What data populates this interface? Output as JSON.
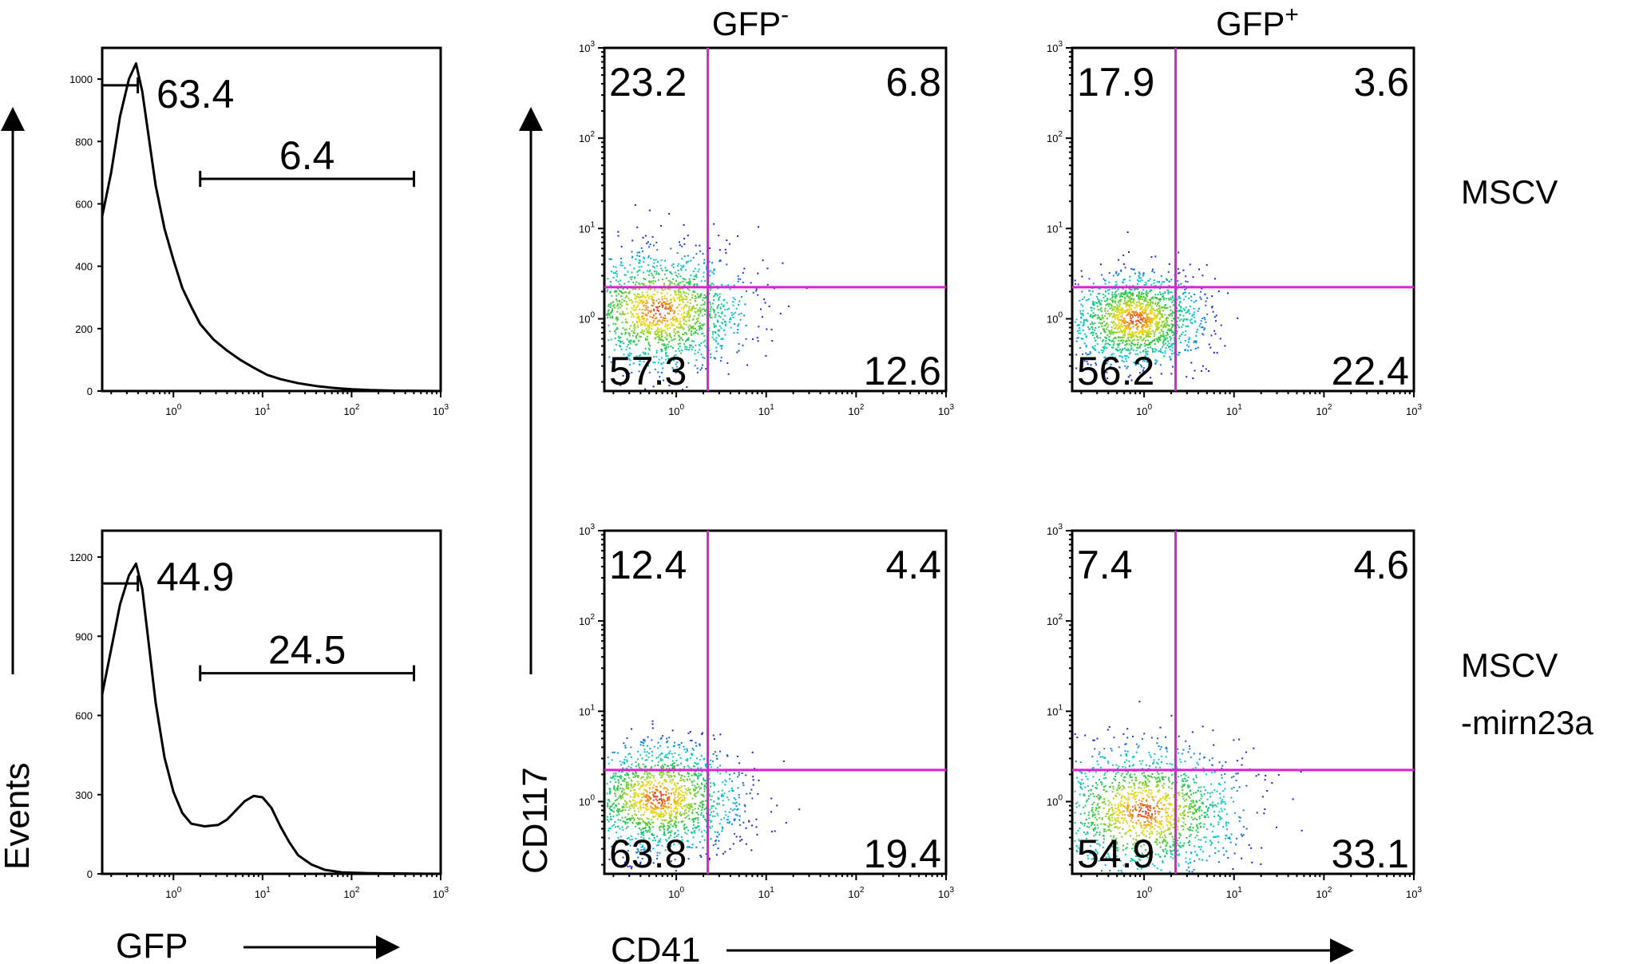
{
  "chart_data": [
    {
      "id": "hist_mscv",
      "type": "histogram",
      "row": "MSCV",
      "xlabel": "",
      "ylabel": "",
      "xlim_log10": [
        -0.8,
        3
      ],
      "ylim": [
        0,
        1100
      ],
      "yticks": [
        0,
        200,
        400,
        600,
        800,
        1000
      ],
      "xtick_labels": [
        {
          "base": "10",
          "exp": "0"
        },
        {
          "base": "10",
          "exp": "1"
        },
        {
          "base": "10",
          "exp": "2"
        },
        {
          "base": "10",
          "exp": "3"
        }
      ],
      "curve": [
        [
          -0.8,
          560
        ],
        [
          -0.7,
          700
        ],
        [
          -0.6,
          880
        ],
        [
          -0.5,
          1000
        ],
        [
          -0.42,
          1050
        ],
        [
          -0.35,
          960
        ],
        [
          -0.28,
          820
        ],
        [
          -0.2,
          660
        ],
        [
          -0.1,
          520
        ],
        [
          0.0,
          420
        ],
        [
          0.1,
          330
        ],
        [
          0.2,
          270
        ],
        [
          0.3,
          215
        ],
        [
          0.45,
          165
        ],
        [
          0.6,
          130
        ],
        [
          0.75,
          100
        ],
        [
          0.9,
          75
        ],
        [
          1.05,
          52
        ],
        [
          1.2,
          38
        ],
        [
          1.4,
          25
        ],
        [
          1.6,
          16
        ],
        [
          1.8,
          10
        ],
        [
          2.0,
          6
        ],
        [
          2.2,
          3
        ],
        [
          2.5,
          1
        ],
        [
          3.0,
          0
        ]
      ],
      "gates": [
        {
          "label": "63.4",
          "x_from": -0.8,
          "x_to": -0.4,
          "y": 980
        },
        {
          "label": "6.4",
          "x_from": 0.3,
          "x_to": 2.7,
          "y": 680
        }
      ]
    },
    {
      "id": "hist_mirn23a",
      "type": "histogram",
      "row": "MSCV -mirn23a",
      "xlabel": "GFP",
      "ylabel": "Events",
      "xlim_log10": [
        -0.8,
        3
      ],
      "ylim": [
        0,
        1300
      ],
      "yticks": [
        0,
        300,
        600,
        900,
        1200
      ],
      "xtick_labels": [
        {
          "base": "10",
          "exp": "0"
        },
        {
          "base": "10",
          "exp": "1"
        },
        {
          "base": "10",
          "exp": "2"
        },
        {
          "base": "10",
          "exp": "3"
        }
      ],
      "curve": [
        [
          -0.8,
          680
        ],
        [
          -0.7,
          850
        ],
        [
          -0.6,
          1020
        ],
        [
          -0.5,
          1130
        ],
        [
          -0.42,
          1175
        ],
        [
          -0.35,
          1080
        ],
        [
          -0.28,
          880
        ],
        [
          -0.2,
          650
        ],
        [
          -0.1,
          440
        ],
        [
          0.0,
          310
        ],
        [
          0.1,
          230
        ],
        [
          0.2,
          190
        ],
        [
          0.35,
          180
        ],
        [
          0.5,
          185
        ],
        [
          0.6,
          205
        ],
        [
          0.7,
          240
        ],
        [
          0.8,
          275
        ],
        [
          0.9,
          295
        ],
        [
          1.0,
          290
        ],
        [
          1.1,
          250
        ],
        [
          1.2,
          180
        ],
        [
          1.3,
          120
        ],
        [
          1.4,
          70
        ],
        [
          1.55,
          35
        ],
        [
          1.7,
          15
        ],
        [
          1.9,
          5
        ],
        [
          2.2,
          2
        ],
        [
          3.0,
          0
        ]
      ],
      "gates": [
        {
          "label": "44.9",
          "x_from": -0.8,
          "x_to": -0.4,
          "y": 1100
        },
        {
          "label": "24.5",
          "x_from": 0.3,
          "x_to": 2.7,
          "y": 760
        }
      ]
    },
    {
      "id": "dot_mscv_gfpneg",
      "type": "scatter",
      "row": "MSCV",
      "column": "GFP-",
      "quadrants": {
        "ul": "23.2",
        "ur": "6.8",
        "ll": "57.3",
        "lr": "12.6"
      },
      "density_center_log10": [
        -0.2,
        0.1
      ],
      "density_spread": 0.45,
      "xlim_log10": [
        -0.8,
        3
      ],
      "ylim_log10": [
        -0.8,
        3
      ],
      "xtick_labels": [
        {
          "base": "10",
          "exp": "0"
        },
        {
          "base": "10",
          "exp": "1"
        },
        {
          "base": "10",
          "exp": "2"
        },
        {
          "base": "10",
          "exp": "3"
        }
      ],
      "ytick_labels": [
        {
          "base": "10",
          "exp": "0"
        },
        {
          "base": "10",
          "exp": "1"
        },
        {
          "base": "10",
          "exp": "2"
        },
        {
          "base": "10",
          "exp": "3"
        }
      ]
    },
    {
      "id": "dot_mscv_gfppos",
      "type": "scatter",
      "row": "MSCV",
      "column": "GFP+",
      "quadrants": {
        "ul": "17.9",
        "ur": "3.6",
        "ll": "56.2",
        "lr": "22.4"
      },
      "density_center_log10": [
        -0.1,
        0.0
      ],
      "density_spread": 0.35,
      "xlim_log10": [
        -0.8,
        3
      ],
      "ylim_log10": [
        -0.8,
        3
      ],
      "xtick_labels": [
        {
          "base": "10",
          "exp": "0"
        },
        {
          "base": "10",
          "exp": "1"
        },
        {
          "base": "10",
          "exp": "2"
        },
        {
          "base": "10",
          "exp": "3"
        }
      ],
      "ytick_labels": [
        {
          "base": "10",
          "exp": "0"
        },
        {
          "base": "10",
          "exp": "1"
        },
        {
          "base": "10",
          "exp": "2"
        },
        {
          "base": "10",
          "exp": "3"
        }
      ]
    },
    {
      "id": "dot_mirn_gfpneg",
      "type": "scatter",
      "row": "MSCV -mirn23a",
      "column": "GFP-",
      "quadrants": {
        "ul": "12.4",
        "ur": "4.4",
        "ll": "63.8",
        "lr": "19.4"
      },
      "density_center_log10": [
        -0.2,
        0.05
      ],
      "density_spread": 0.42,
      "xlim_log10": [
        -0.8,
        3
      ],
      "ylim_log10": [
        -0.8,
        3
      ],
      "xtick_labels": [
        {
          "base": "10",
          "exp": "0"
        },
        {
          "base": "10",
          "exp": "1"
        },
        {
          "base": "10",
          "exp": "2"
        },
        {
          "base": "10",
          "exp": "3"
        }
      ],
      "ytick_labels": [
        {
          "base": "10",
          "exp": "0"
        },
        {
          "base": "10",
          "exp": "1"
        },
        {
          "base": "10",
          "exp": "2"
        },
        {
          "base": "10",
          "exp": "3"
        }
      ]
    },
    {
      "id": "dot_mirn_gfppos",
      "type": "scatter",
      "row": "MSCV -mirn23a",
      "column": "GFP+",
      "quadrants": {
        "ul": "7.4",
        "ur": "4.6",
        "ll": "54.9",
        "lr": "33.1"
      },
      "density_center_log10": [
        0.0,
        -0.1
      ],
      "density_spread": 0.5,
      "xlim_log10": [
        -0.8,
        3
      ],
      "ylim_log10": [
        -0.8,
        3
      ],
      "xtick_labels": [
        {
          "base": "10",
          "exp": "0"
        },
        {
          "base": "10",
          "exp": "1"
        },
        {
          "base": "10",
          "exp": "2"
        },
        {
          "base": "10",
          "exp": "3"
        }
      ],
      "ytick_labels": [
        {
          "base": "10",
          "exp": "0"
        },
        {
          "base": "10",
          "exp": "1"
        },
        {
          "base": "10",
          "exp": "2"
        },
        {
          "base": "10",
          "exp": "3"
        }
      ]
    }
  ],
  "labels": {
    "col_gfp_neg": {
      "base": "GFP",
      "sup": "-"
    },
    "col_gfp_pos": {
      "base": "GFP",
      "sup": "+"
    },
    "row_mscv": "MSCV",
    "row_mirn_line1": "MSCV",
    "row_mirn_line2": "-mirn23a",
    "hist_xlabel": "GFP",
    "hist_ylabel": "Events",
    "dot_xlabel": "CD41",
    "dot_ylabel": "CD117"
  }
}
